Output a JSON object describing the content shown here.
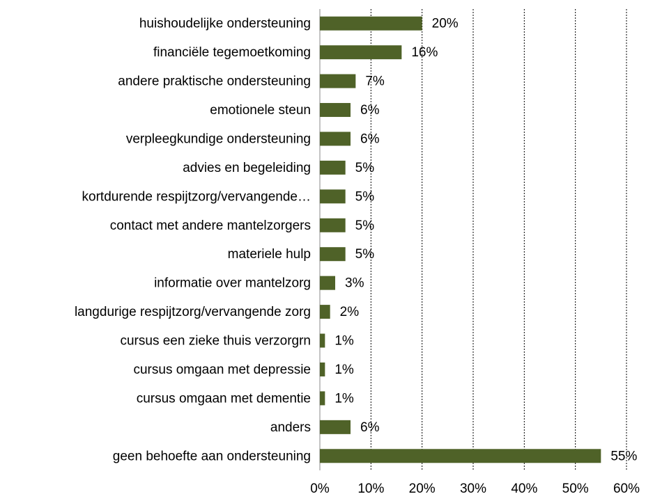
{
  "chart_data": {
    "type": "hbar",
    "categories": [
      "huishoudelijke ondersteuning",
      "financiële tegemoetkoming",
      "andere praktische ondersteuning",
      "emotionele steun",
      "verpleegkundige ondersteuning",
      "advies en begeleiding",
      "kortdurende respijtzorg/vervangende…",
      "contact met andere mantelzorgers",
      "materiele hulp",
      "informatie over mantelzorg",
      "langdurige respijtzorg/vervangende zorg",
      "cursus een zieke thuis verzorgrn",
      "cursus omgaan met depressie",
      "cursus omgaan met dementie",
      "anders",
      "geen behoefte aan ondersteuning"
    ],
    "values": [
      20,
      16,
      7,
      6,
      6,
      5,
      5,
      5,
      5,
      3,
      2,
      1,
      1,
      1,
      6,
      55
    ],
    "value_labels": [
      "20%",
      "16%",
      "7%",
      "6%",
      "6%",
      "5%",
      "5%",
      "5%",
      "5%",
      "3%",
      "2%",
      "1%",
      "1%",
      "1%",
      "6%",
      "55%"
    ],
    "color": "#4f6228",
    "xlim": [
      0,
      60
    ],
    "xticks": [
      {
        "value": 0,
        "label": "0%"
      },
      {
        "value": 10,
        "label": "10%"
      },
      {
        "value": 20,
        "label": "20%"
      },
      {
        "value": 30,
        "label": "30%"
      },
      {
        "value": 40,
        "label": "40%"
      },
      {
        "value": 50,
        "label": "50%"
      },
      {
        "value": 60,
        "label": "60%"
      }
    ],
    "grid": true
  }
}
